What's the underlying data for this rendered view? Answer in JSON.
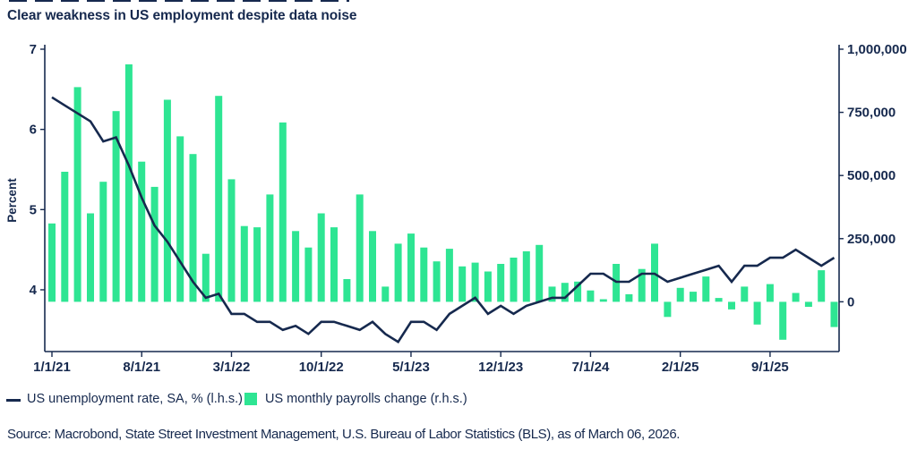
{
  "title": "Clear weakness in US employment despite data noise",
  "source": "Source: Macrobond, State Street Investment Management, U.S. Bureau of Labor Statistics (BLS), as of March 06, 2026.",
  "legend": {
    "line_label": "US unemployment rate, SA, % (l.h.s.)",
    "bars_label": "US monthly payrolls change (r.h.s.)"
  },
  "colors": {
    "navy": "#16294E",
    "green": "#2EE593",
    "background": "#FFFFFF"
  },
  "chart_data": {
    "type": "combo",
    "x": [
      "1/21",
      "2/21",
      "3/21",
      "4/21",
      "5/21",
      "6/21",
      "7/21",
      "8/21",
      "9/21",
      "10/21",
      "11/21",
      "12/21",
      "1/22",
      "2/22",
      "3/22",
      "4/22",
      "5/22",
      "6/22",
      "7/22",
      "8/22",
      "9/22",
      "10/22",
      "11/22",
      "12/22",
      "1/23",
      "2/23",
      "3/23",
      "4/23",
      "5/23",
      "6/23",
      "7/23",
      "8/23",
      "9/23",
      "10/23",
      "11/23",
      "12/23",
      "1/24",
      "2/24",
      "3/24",
      "4/24",
      "5/24",
      "6/24",
      "7/24",
      "8/24",
      "9/24",
      "10/24",
      "11/24",
      "12/24",
      "1/25",
      "2/25",
      "3/25",
      "4/25",
      "5/25",
      "6/25",
      "7/25",
      "8/25",
      "9/25",
      "10/25",
      "11/25",
      "12/25",
      "1/26",
      "2/26"
    ],
    "x_tick_positions": [
      0,
      7,
      14,
      21,
      28,
      35,
      42,
      49,
      56
    ],
    "x_tick_labels": [
      "1/1/21",
      "8/1/21",
      "3/1/22",
      "10/1/22",
      "5/1/23",
      "12/1/23",
      "7/1/24",
      "2/1/25",
      "9/1/25"
    ],
    "left_axis": {
      "label": "Percent",
      "tick_values": [
        4,
        5,
        6,
        7
      ],
      "tick_labels": [
        "4",
        "5",
        "6",
        "7"
      ],
      "range": [
        3.23,
        7
      ]
    },
    "right_axis": {
      "tick_values": [
        0,
        250000,
        500000,
        750000,
        1000000
      ],
      "tick_labels": [
        "0",
        "250,000",
        "500,000",
        "750,000",
        "1,000,000"
      ],
      "range": [
        -197000,
        1000000
      ]
    },
    "series": [
      {
        "name": "US unemployment rate, SA, % (l.h.s.)",
        "type": "line",
        "axis": "left",
        "values": [
          6.4,
          6.3,
          6.2,
          6.1,
          5.85,
          5.9,
          5.55,
          5.15,
          4.8,
          4.6,
          4.35,
          4.1,
          3.9,
          3.95,
          3.7,
          3.7,
          3.6,
          3.6,
          3.5,
          3.55,
          3.45,
          3.6,
          3.6,
          3.55,
          3.5,
          3.6,
          3.45,
          3.35,
          3.6,
          3.6,
          3.5,
          3.7,
          3.8,
          3.9,
          3.7,
          3.8,
          3.7,
          3.8,
          3.85,
          3.9,
          3.9,
          4.05,
          4.2,
          4.2,
          4.1,
          4.1,
          4.2,
          4.2,
          4.1,
          4.15,
          4.2,
          4.25,
          4.3,
          4.1,
          4.3,
          4.3,
          4.4,
          4.4,
          4.5,
          4.4,
          4.3,
          4.4
        ]
      },
      {
        "name": "US monthly payrolls change (r.h.s.)",
        "type": "bar",
        "axis": "right",
        "values": [
          310000,
          515000,
          850000,
          350000,
          475000,
          755000,
          940000,
          555000,
          455000,
          800000,
          655000,
          585000,
          190000,
          815000,
          485000,
          300000,
          295000,
          425000,
          710000,
          280000,
          215000,
          350000,
          295000,
          90000,
          425000,
          280000,
          60000,
          230000,
          270000,
          215000,
          160000,
          210000,
          140000,
          155000,
          120000,
          150000,
          175000,
          200000,
          225000,
          60000,
          75000,
          80000,
          45000,
          10000,
          150000,
          30000,
          130000,
          230000,
          -60000,
          55000,
          40000,
          100000,
          15000,
          -30000,
          60000,
          -90000,
          70000,
          -150000,
          35000,
          -20000,
          125000,
          -100000
        ]
      }
    ]
  }
}
